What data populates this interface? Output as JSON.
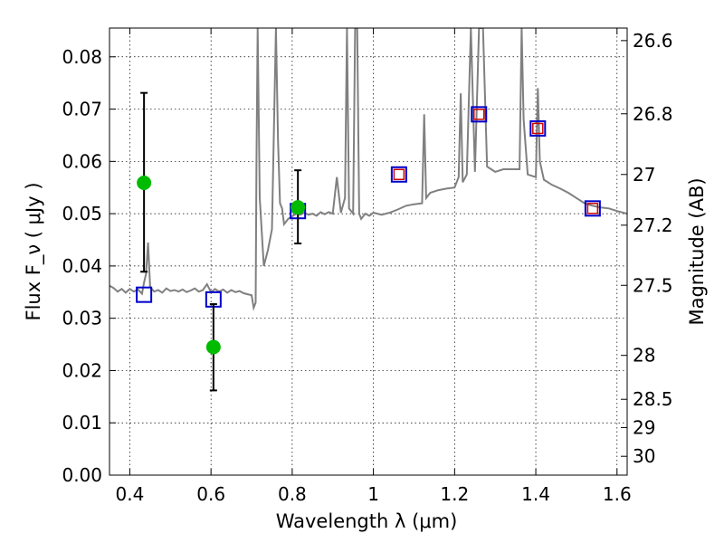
{
  "chart_data": {
    "type": "scatter",
    "title": "",
    "xlabel": "Wavelength  λ (μm)",
    "ylabel": "Flux  F_ν  ( μJy )",
    "y2label": "Magnitude (AB)",
    "xlim": [
      0.35,
      1.625
    ],
    "ylim": [
      0.0,
      0.0855
    ],
    "grid": true,
    "legend": "none",
    "x_ticks": [
      {
        "value": 0.4,
        "label": "0.4"
      },
      {
        "value": 0.6,
        "label": "0.6"
      },
      {
        "value": 0.8,
        "label": "0.8"
      },
      {
        "value": 1.0,
        "label": "1"
      },
      {
        "value": 1.2,
        "label": "1.2"
      },
      {
        "value": 1.4,
        "label": "1.4"
      },
      {
        "value": 1.6,
        "label": "1.6"
      }
    ],
    "y_ticks": [
      {
        "value": 0.0,
        "label": "0.00"
      },
      {
        "value": 0.01,
        "label": "0.01"
      },
      {
        "value": 0.02,
        "label": "0.02"
      },
      {
        "value": 0.03,
        "label": "0.03"
      },
      {
        "value": 0.04,
        "label": "0.04"
      },
      {
        "value": 0.05,
        "label": "0.05"
      },
      {
        "value": 0.06,
        "label": "0.06"
      },
      {
        "value": 0.07,
        "label": "0.07"
      },
      {
        "value": 0.08,
        "label": "0.08"
      }
    ],
    "y2_ticks": [
      {
        "label": "26.6",
        "flux": 0.0831
      },
      {
        "label": "26.8",
        "flux": 0.0691
      },
      {
        "label": "27",
        "flux": 0.0575
      },
      {
        "label": "27.2",
        "flux": 0.0478
      },
      {
        "label": "27.5",
        "flux": 0.0363
      },
      {
        "label": "28",
        "flux": 0.0229
      },
      {
        "label": "28.5",
        "flux": 0.0145
      },
      {
        "label": "29",
        "flux": 0.0091
      },
      {
        "label": "30",
        "flux": 0.0036
      }
    ],
    "series": [
      {
        "kind": "spectrum",
        "color": "#808080",
        "x": [
          0.35,
          0.36,
          0.37,
          0.38,
          0.39,
          0.4,
          0.41,
          0.42,
          0.43,
          0.435,
          0.44,
          0.445,
          0.45,
          0.46,
          0.47,
          0.48,
          0.49,
          0.5,
          0.51,
          0.52,
          0.53,
          0.54,
          0.55,
          0.56,
          0.57,
          0.58,
          0.59,
          0.6,
          0.61,
          0.62,
          0.63,
          0.64,
          0.65,
          0.66,
          0.67,
          0.68,
          0.69,
          0.7,
          0.705,
          0.71,
          0.712,
          0.715,
          0.72,
          0.73,
          0.74,
          0.75,
          0.76,
          0.765,
          0.77,
          0.775,
          0.78,
          0.79,
          0.8,
          0.81,
          0.82,
          0.83,
          0.84,
          0.85,
          0.86,
          0.87,
          0.88,
          0.89,
          0.9,
          0.91,
          0.92,
          0.93,
          0.935,
          0.94,
          0.95,
          0.955,
          0.96,
          0.965,
          0.97,
          0.98,
          0.99,
          1.0,
          1.02,
          1.04,
          1.06,
          1.08,
          1.1,
          1.12,
          1.125,
          1.13,
          1.14,
          1.16,
          1.18,
          1.2,
          1.21,
          1.215,
          1.22,
          1.23,
          1.24,
          1.25,
          1.26,
          1.27,
          1.28,
          1.29,
          1.3,
          1.32,
          1.34,
          1.36,
          1.365,
          1.37,
          1.38,
          1.4,
          1.405,
          1.41,
          1.42,
          1.44,
          1.46,
          1.48,
          1.5,
          1.52,
          1.54,
          1.56,
          1.58,
          1.6,
          1.625
        ],
        "values": [
          0.0362,
          0.0358,
          0.0351,
          0.0356,
          0.0349,
          0.0356,
          0.0351,
          0.0355,
          0.0347,
          0.0368,
          0.0385,
          0.0445,
          0.036,
          0.0351,
          0.0354,
          0.0349,
          0.0357,
          0.0352,
          0.0354,
          0.0351,
          0.0355,
          0.035,
          0.0353,
          0.0357,
          0.0351,
          0.0354,
          0.0365,
          0.035,
          0.0356,
          0.0351,
          0.0355,
          0.0349,
          0.0354,
          0.035,
          0.0352,
          0.0348,
          0.0346,
          0.0344,
          0.032,
          0.033,
          0.06,
          0.0855,
          0.053,
          0.04,
          0.043,
          0.047,
          0.0855,
          0.064,
          0.052,
          0.051,
          0.048,
          0.049,
          0.0495,
          0.05,
          0.0498,
          0.0502,
          0.0498,
          0.05,
          0.0496,
          0.0503,
          0.0499,
          0.0503,
          0.05,
          0.057,
          0.0502,
          0.053,
          0.0855,
          0.051,
          0.05,
          0.0855,
          0.0855,
          0.05,
          0.049,
          0.05,
          0.0496,
          0.0502,
          0.0498,
          0.0502,
          0.0508,
          0.0515,
          0.0518,
          0.052,
          0.069,
          0.053,
          0.054,
          0.0545,
          0.0548,
          0.055,
          0.057,
          0.073,
          0.056,
          0.0575,
          0.0855,
          0.058,
          0.0855,
          0.0855,
          0.059,
          0.0585,
          0.058,
          0.0585,
          0.0585,
          0.0585,
          0.0855,
          0.068,
          0.0575,
          0.057,
          0.074,
          0.06,
          0.0565,
          0.0555,
          0.0548,
          0.054,
          0.053,
          0.052,
          0.0515,
          0.0512,
          0.051,
          0.0505,
          0.05
        ]
      },
      {
        "kind": "model-photometry",
        "marker": "square",
        "color": "#0000cc",
        "x": [
          0.435,
          0.606,
          0.814,
          1.063,
          1.26,
          1.405,
          1.54
        ],
        "values": [
          0.0345,
          0.0336,
          0.0505,
          0.0575,
          0.069,
          0.0663,
          0.051
        ]
      },
      {
        "kind": "observed-photometry",
        "marker": "square",
        "color": "#cc0000",
        "x": [
          1.063,
          1.26,
          1.405,
          1.54
        ],
        "values": [
          0.0575,
          0.069,
          0.0663,
          0.051
        ]
      },
      {
        "kind": "observed-photometry",
        "marker": "circle",
        "color": "#00bb00",
        "x": [
          0.435,
          0.606,
          0.814
        ],
        "values": [
          0.0559,
          0.0245,
          0.0512
        ],
        "err_low": [
          0.017,
          0.0083,
          0.0069
        ],
        "err_high": [
          0.0172,
          0.0082,
          0.0071
        ]
      }
    ]
  }
}
